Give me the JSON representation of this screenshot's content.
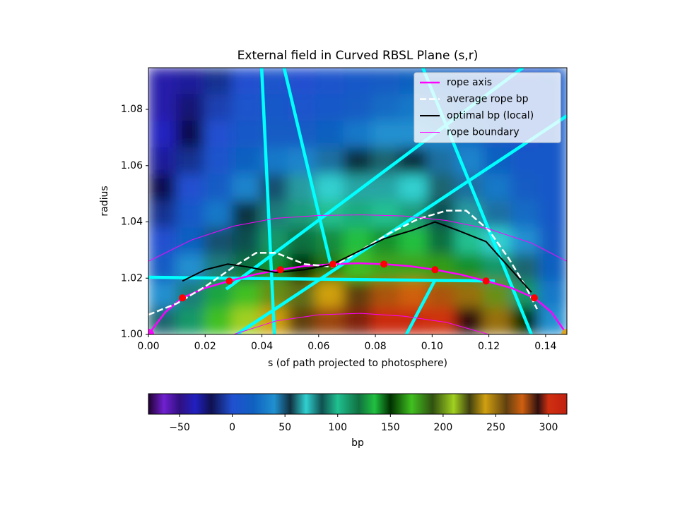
{
  "chart_data": {
    "type": "field",
    "title": "External field in Curved RBSL Plane (s,r)",
    "xlabel": "s (of path projected to photosphere)",
    "ylabel": "radius",
    "xlim": [
      0,
      0.1475
    ],
    "ylim": [
      1.0,
      1.0948
    ],
    "xticks": [
      {
        "value": 0,
        "label": "0.00"
      },
      0.02,
      0.04,
      0.06,
      0.08,
      {
        "value": 0.1,
        "label": "0.10"
      },
      0.12,
      0.14
    ],
    "yticks": [
      {
        "value": 1.0,
        "label": "1.00"
      },
      1.02,
      1.04,
      1.06,
      1.08
    ],
    "legend": "upper right",
    "heatmap": {
      "z": [
        [
          -40,
          -30,
          -10,
          0,
          5,
          0,
          5,
          10,
          15,
          20,
          20,
          15,
          10,
          5,
          10
        ],
        [
          -40,
          -25,
          -5,
          5,
          10,
          5,
          10,
          15,
          25,
          30,
          25,
          20,
          10,
          5,
          10
        ],
        [
          -35,
          -20,
          0,
          10,
          15,
          15,
          20,
          30,
          40,
          40,
          35,
          25,
          15,
          5,
          10
        ],
        [
          -30,
          -10,
          5,
          20,
          30,
          35,
          45,
          55,
          60,
          55,
          45,
          35,
          20,
          10,
          10
        ],
        [
          -20,
          0,
          15,
          35,
          50,
          65,
          70,
          75,
          75,
          70,
          60,
          45,
          30,
          15,
          10
        ],
        [
          -10,
          10,
          30,
          55,
          80,
          95,
          100,
          105,
          100,
          95,
          85,
          65,
          45,
          25,
          10
        ],
        [
          0,
          20,
          50,
          85,
          110,
          120,
          125,
          135,
          140,
          135,
          120,
          100,
          70,
          40,
          15
        ],
        [
          15,
          40,
          80,
          120,
          140,
          150,
          160,
          170,
          175,
          175,
          165,
          140,
          110,
          60,
          20
        ],
        [
          40,
          80,
          130,
          170,
          200,
          220,
          240,
          260,
          270,
          275,
          270,
          250,
          200,
          110,
          30
        ],
        [
          60,
          110,
          170,
          210,
          240,
          260,
          280,
          295,
          305,
          305,
          300,
          290,
          250,
          150,
          40
        ]
      ]
    },
    "colorbar": {
      "label": "bp",
      "clim": [
        -79.5,
        317.4
      ],
      "ticks": [
        {
          "value": -50,
          "label": "−50"
        },
        0,
        50,
        100,
        150,
        200,
        250,
        300
      ],
      "colormap": [
        {
          "value": -79.5,
          "color": "#200030"
        },
        {
          "value": -65,
          "color": "#7020d0"
        },
        {
          "value": -50,
          "color": "#301080"
        },
        {
          "value": -35,
          "color": "#2020c0"
        },
        {
          "value": -20,
          "color": "#101050"
        },
        {
          "value": 0,
          "color": "#2050d0"
        },
        {
          "value": 20,
          "color": "#1060c0"
        },
        {
          "value": 40,
          "color": "#2090d0"
        },
        {
          "value": 55,
          "color": "#103040"
        },
        {
          "value": 70,
          "color": "#30d0d0"
        },
        {
          "value": 85,
          "color": "#105050"
        },
        {
          "value": 100,
          "color": "#20c090"
        },
        {
          "value": 120,
          "color": "#107040"
        },
        {
          "value": 135,
          "color": "#20c040"
        },
        {
          "value": 150,
          "color": "#003000"
        },
        {
          "value": 170,
          "color": "#40c020"
        },
        {
          "value": 190,
          "color": "#305010"
        },
        {
          "value": 210,
          "color": "#a0d020"
        },
        {
          "value": 225,
          "color": "#404010"
        },
        {
          "value": 240,
          "color": "#d0a010"
        },
        {
          "value": 260,
          "color": "#604010"
        },
        {
          "value": 275,
          "color": "#d06010"
        },
        {
          "value": 290,
          "color": "#301010"
        },
        {
          "value": 300,
          "color": "#d03010"
        },
        {
          "value": 317.4,
          "color": "#c02010"
        }
      ]
    },
    "field_lines": {
      "color": "#00ffff",
      "segments": [
        {
          "x": [
            0.0399,
            0.0444
          ],
          "y": [
            1.0948,
            1.0
          ]
        },
        {
          "x": [
            0.0478,
            0.0643
          ],
          "y": [
            1.0948,
            1.0246
          ]
        },
        {
          "x": [
            0.0967,
            0.135
          ],
          "y": [
            1.0948,
            1.0
          ]
        },
        {
          "x": [
            0.0274,
            0.132
          ],
          "y": [
            1.0161,
            1.0948
          ]
        },
        {
          "x": [
            0.0311,
            0.1475
          ],
          "y": [
            1.0,
            1.0777
          ]
        },
        {
          "x": [
            0,
            0.1221
          ],
          "y": [
            1.0203,
            1.019
          ]
        },
        {
          "x": [
            0.0909,
            0.1009
          ],
          "y": [
            1.0,
            1.0191
          ]
        }
      ]
    },
    "series": [
      {
        "name": "rope axis",
        "color": "#ff00ff",
        "style": "thick",
        "x": [
          0,
          0.006,
          0.012,
          0.02,
          0.0285,
          0.0375,
          0.0465,
          0.055,
          0.065,
          0.074,
          0.083,
          0.092,
          0.101,
          0.11,
          0.119,
          0.128,
          0.136,
          0.142,
          0.1475
        ],
        "y": [
          1.0,
          1.008,
          1.013,
          1.0165,
          1.019,
          1.0213,
          1.023,
          1.0243,
          1.025,
          1.0253,
          1.025,
          1.0243,
          1.023,
          1.0213,
          1.019,
          1.0165,
          1.013,
          1.008,
          1.0
        ]
      },
      {
        "name": "average rope bp",
        "color": "#ffffff",
        "style": "dashed",
        "x": [
          0,
          0.01,
          0.02,
          0.03,
          0.038,
          0.045,
          0.055,
          0.065,
          0.075,
          0.085,
          0.095,
          0.105,
          0.112,
          0.12,
          0.127,
          0.133,
          0.137
        ],
        "y": [
          1.007,
          1.011,
          1.017,
          1.024,
          1.029,
          1.029,
          1.025,
          1.024,
          1.03,
          1.036,
          1.041,
          1.044,
          1.044,
          1.037,
          1.027,
          1.017,
          1.009
        ]
      },
      {
        "name": "optimal bp (local)",
        "color": "#000000",
        "style": "solid",
        "x": [
          0.012,
          0.02,
          0.028,
          0.035,
          0.045,
          0.055,
          0.065,
          0.073,
          0.083,
          0.093,
          0.101,
          0.109,
          0.119,
          0.127,
          0.135
        ],
        "y": [
          1.019,
          1.023,
          1.025,
          1.024,
          1.022,
          1.023,
          1.025,
          1.029,
          1.034,
          1.037,
          1.04,
          1.037,
          1.033,
          1.024,
          1.015
        ]
      },
      {
        "name": "rope boundary",
        "color": "#ff00ff",
        "style": "thin",
        "x": [
          0,
          0.015,
          0.03,
          0.045,
          0.06,
          0.075,
          0.09,
          0.105,
          0.12,
          0.135,
          0.1475,
          null,
          0.03,
          0.045,
          0.06,
          0.075,
          0.09,
          0.105,
          0.12
        ],
        "y": [
          1.026,
          1.0335,
          1.0385,
          1.0413,
          1.0423,
          1.0425,
          1.0421,
          1.0405,
          1.0375,
          1.0325,
          1.026,
          null,
          1.0,
          1.0048,
          1.007,
          1.0075,
          1.0065,
          1.0043,
          1.0
        ]
      }
    ],
    "points": {
      "color": "#ff0000",
      "x": [
        0.012,
        0.0285,
        0.0465,
        0.065,
        0.083,
        0.101,
        0.119,
        0.136
      ],
      "y": [
        1.013,
        1.019,
        1.023,
        1.025,
        1.025,
        1.023,
        1.019,
        1.013
      ]
    },
    "endpoints": [
      {
        "x": 0,
        "y": 1.0,
        "color": "#ff00ff"
      },
      {
        "x": 0.1475,
        "y": 1.0,
        "color": "#daa520"
      }
    ]
  }
}
